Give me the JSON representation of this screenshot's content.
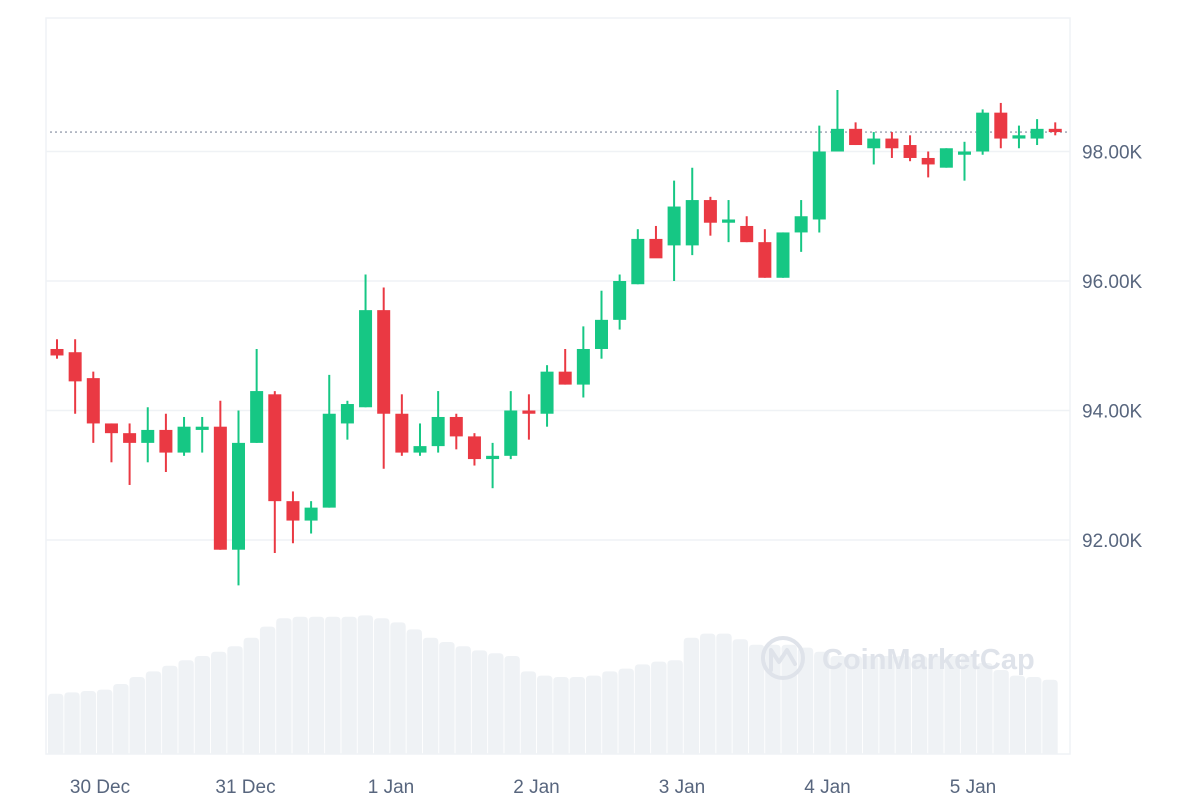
{
  "chart_data": {
    "type": "candlestick",
    "title": "",
    "xlabel": "",
    "ylabel": "",
    "ylim": [
      89800,
      99800
    ],
    "y_ticks": [
      {
        "value": 92000,
        "label": "92.00K"
      },
      {
        "value": 94000,
        "label": "94.00K"
      },
      {
        "value": 96000,
        "label": "96.00K"
      },
      {
        "value": 98000,
        "label": "98.00K"
      }
    ],
    "x_ticks": [
      "30 Dec",
      "31 Dec",
      "1 Jan",
      "2 Jan",
      "3 Jan",
      "4 Jan",
      "5 Jan"
    ],
    "current_price": 98300,
    "grid": true,
    "candle_interval": "2h",
    "colors": {
      "up": "#16c784",
      "down": "#ea3943",
      "volume": "#eff2f5",
      "grid": "#eff2f5",
      "price_line": "#808a9d"
    },
    "candles": [
      [
        94950,
        95100,
        94800,
        94850
      ],
      [
        94900,
        95100,
        93950,
        94450
      ],
      [
        94500,
        94600,
        93500,
        93800
      ],
      [
        93800,
        93800,
        93200,
        93650
      ],
      [
        93650,
        93800,
        92850,
        93500
      ],
      [
        93500,
        94050,
        93200,
        93700
      ],
      [
        93700,
        93950,
        93050,
        93350
      ],
      [
        93350,
        93900,
        93300,
        93750
      ],
      [
        93700,
        93900,
        93350,
        93750
      ],
      [
        93750,
        94150,
        91850,
        91850
      ],
      [
        91850,
        94000,
        91300,
        93500
      ],
      [
        93500,
        94950,
        93500,
        94300
      ],
      [
        94250,
        94300,
        91800,
        92600
      ],
      [
        92600,
        92750,
        91950,
        92300
      ],
      [
        92300,
        92600,
        92100,
        92500
      ],
      [
        92500,
        94550,
        92500,
        93950
      ],
      [
        93800,
        94150,
        93550,
        94100
      ],
      [
        94050,
        96100,
        94050,
        95550
      ],
      [
        95550,
        95900,
        93100,
        93950
      ],
      [
        93950,
        94250,
        93300,
        93350
      ],
      [
        93350,
        93800,
        93300,
        93450
      ],
      [
        93450,
        94300,
        93350,
        93900
      ],
      [
        93900,
        93950,
        93400,
        93600
      ],
      [
        93600,
        93650,
        93150,
        93250
      ],
      [
        93250,
        93500,
        92800,
        93300
      ],
      [
        93300,
        94300,
        93250,
        94000
      ],
      [
        94000,
        94250,
        93550,
        93950
      ],
      [
        93950,
        94700,
        93750,
        94600
      ],
      [
        94600,
        94950,
        94400,
        94400
      ],
      [
        94400,
        95300,
        94200,
        94950
      ],
      [
        94950,
        95850,
        94800,
        95400
      ],
      [
        95400,
        96100,
        95250,
        96000
      ],
      [
        95950,
        96800,
        95950,
        96650
      ],
      [
        96650,
        96850,
        96400,
        96350
      ],
      [
        96550,
        97550,
        96000,
        97150
      ],
      [
        96550,
        97750,
        96400,
        97250
      ],
      [
        97250,
        97300,
        96700,
        96900
      ],
      [
        96900,
        97250,
        96600,
        96950
      ],
      [
        96850,
        97000,
        96600,
        96600
      ],
      [
        96600,
        96800,
        96050,
        96050
      ],
      [
        96050,
        96750,
        96050,
        96750
      ],
      [
        96750,
        97250,
        96450,
        97000
      ],
      [
        96950,
        98400,
        96750,
        98000
      ],
      [
        98000,
        98950,
        98000,
        98350
      ],
      [
        98350,
        98450,
        98100,
        98100
      ],
      [
        98050,
        98300,
        97800,
        98200
      ],
      [
        98200,
        98300,
        97900,
        98050
      ],
      [
        98100,
        98250,
        97850,
        97900
      ],
      [
        97900,
        98000,
        97600,
        97800
      ],
      [
        97750,
        98050,
        97750,
        98050
      ],
      [
        97950,
        98150,
        97550,
        98000
      ],
      [
        98000,
        98650,
        97950,
        98600
      ],
      [
        98600,
        98750,
        98050,
        98200
      ],
      [
        98200,
        98400,
        98050,
        98250
      ],
      [
        98200,
        98500,
        98100,
        98350
      ],
      [
        98350,
        98450,
        98250,
        98300
      ]
    ],
    "volume": [
      0.43,
      0.44,
      0.45,
      0.46,
      0.5,
      0.55,
      0.59,
      0.63,
      0.67,
      0.7,
      0.73,
      0.77,
      0.83,
      0.91,
      0.97,
      0.98,
      0.98,
      0.98,
      0.98,
      0.99,
      0.97,
      0.94,
      0.89,
      0.83,
      0.8,
      0.77,
      0.74,
      0.72,
      0.7,
      0.59,
      0.56,
      0.55,
      0.55,
      0.56,
      0.59,
      0.61,
      0.64,
      0.66,
      0.67,
      0.83,
      0.86,
      0.86,
      0.82,
      0.78,
      0.78,
      0.78,
      0.76,
      0.73,
      0.7,
      0.7,
      0.7,
      0.7,
      0.7,
      0.7,
      0.7,
      0.7,
      0.7,
      0.65,
      0.6,
      0.56,
      0.55,
      0.53
    ]
  },
  "watermark": {
    "text": "CoinMarketCap",
    "icon": "coinmarketcap-logo-icon"
  }
}
